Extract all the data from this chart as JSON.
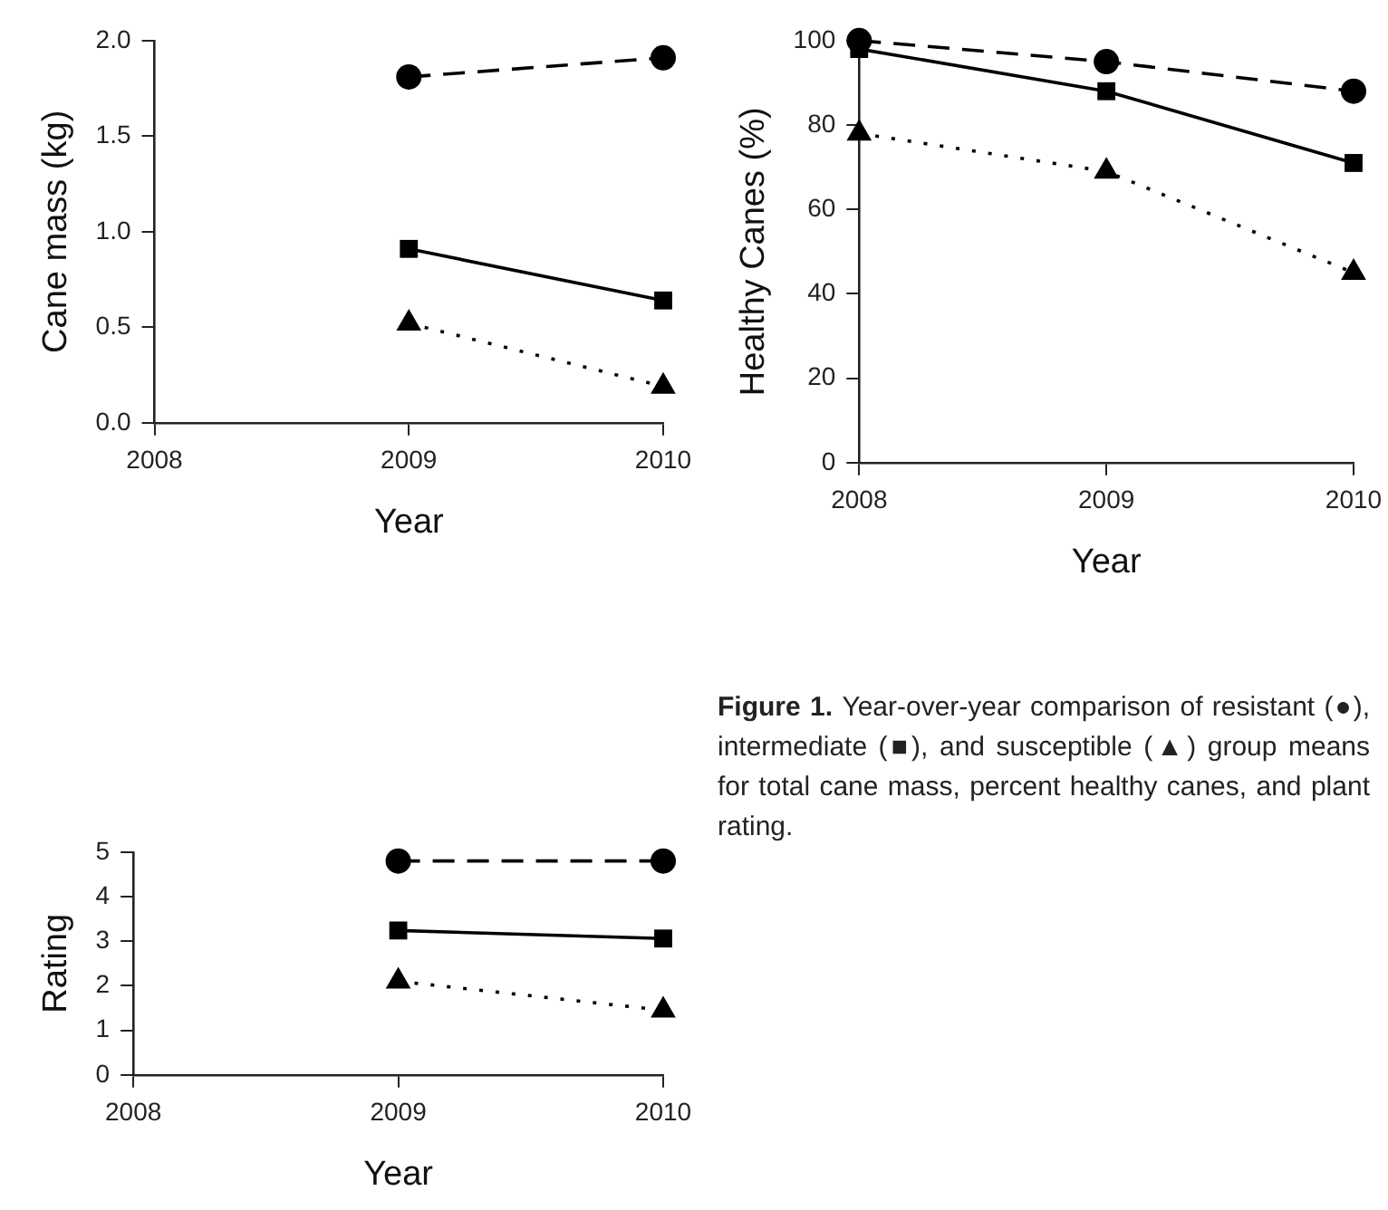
{
  "chart_data": [
    {
      "type": "line",
      "xlabel": "Year",
      "ylabel": "Cane mass (kg)",
      "x": [
        2009,
        2010
      ],
      "xlim": [
        2008,
        2010
      ],
      "xticks": [
        2008,
        2009,
        2010
      ],
      "ylim": [
        0,
        2
      ],
      "yticks": [
        {
          "value": 0,
          "label": "0.0"
        },
        0.5,
        {
          "value": 1,
          "label": "1.0"
        },
        1.5,
        {
          "value": 2,
          "label": "2.0"
        }
      ],
      "grid": false,
      "legend": false,
      "series": [
        {
          "color": "#000000",
          "marker": "circle",
          "line_style": "dashed",
          "values": [
            1.81,
            1.91
          ]
        },
        {
          "color": "#000000",
          "marker": "square",
          "line_style": "solid",
          "values": [
            0.91,
            0.64
          ]
        },
        {
          "color": "#000000",
          "marker": "triangle",
          "line_style": "dotted",
          "values": [
            0.52,
            0.19
          ]
        }
      ]
    },
    {
      "type": "line",
      "xlabel": "Year",
      "ylabel": "Healthy Canes (%)",
      "x": [
        2008,
        2009,
        2010
      ],
      "xlim": [
        2008,
        2010
      ],
      "xticks": [
        2008,
        2009,
        2010
      ],
      "ylim": [
        0,
        100
      ],
      "yticks": [
        0,
        20,
        40,
        60,
        80,
        100
      ],
      "grid": false,
      "legend": false,
      "series": [
        {
          "color": "#000000",
          "marker": "circle",
          "line_style": "dashed",
          "values": [
            100,
            95,
            88
          ]
        },
        {
          "color": "#000000",
          "marker": "square",
          "line_style": "solid",
          "values": [
            98,
            88,
            71
          ]
        },
        {
          "color": "#000000",
          "marker": "triangle",
          "line_style": "dotted",
          "values": [
            78,
            69,
            45
          ]
        }
      ]
    },
    {
      "type": "line",
      "xlabel": "Year",
      "ylabel": "Rating",
      "x": [
        2009,
        2010
      ],
      "xlim": [
        2008,
        2010
      ],
      "xticks": [
        2008,
        2009,
        2010
      ],
      "ylim": [
        0,
        5
      ],
      "yticks": [
        0,
        1,
        2,
        3,
        4,
        5
      ],
      "grid": false,
      "legend": false,
      "series": [
        {
          "color": "#000000",
          "marker": "circle",
          "line_style": "dashed",
          "values": [
            4.8,
            4.8
          ]
        },
        {
          "color": "#000000",
          "marker": "square",
          "line_style": "solid",
          "values": [
            3.24,
            3.06
          ]
        },
        {
          "color": "#000000",
          "marker": "triangle",
          "line_style": "dotted",
          "values": [
            2.1,
            1.45
          ]
        }
      ]
    },
    {
      "type": "other",
      "annotations": [
        "Figure 1.",
        "Year-over-year comparison of resistant (●), intermediate (■), and susceptible (▲) group means for total cane mass, percent healthy canes, and plant rating."
      ]
    }
  ]
}
